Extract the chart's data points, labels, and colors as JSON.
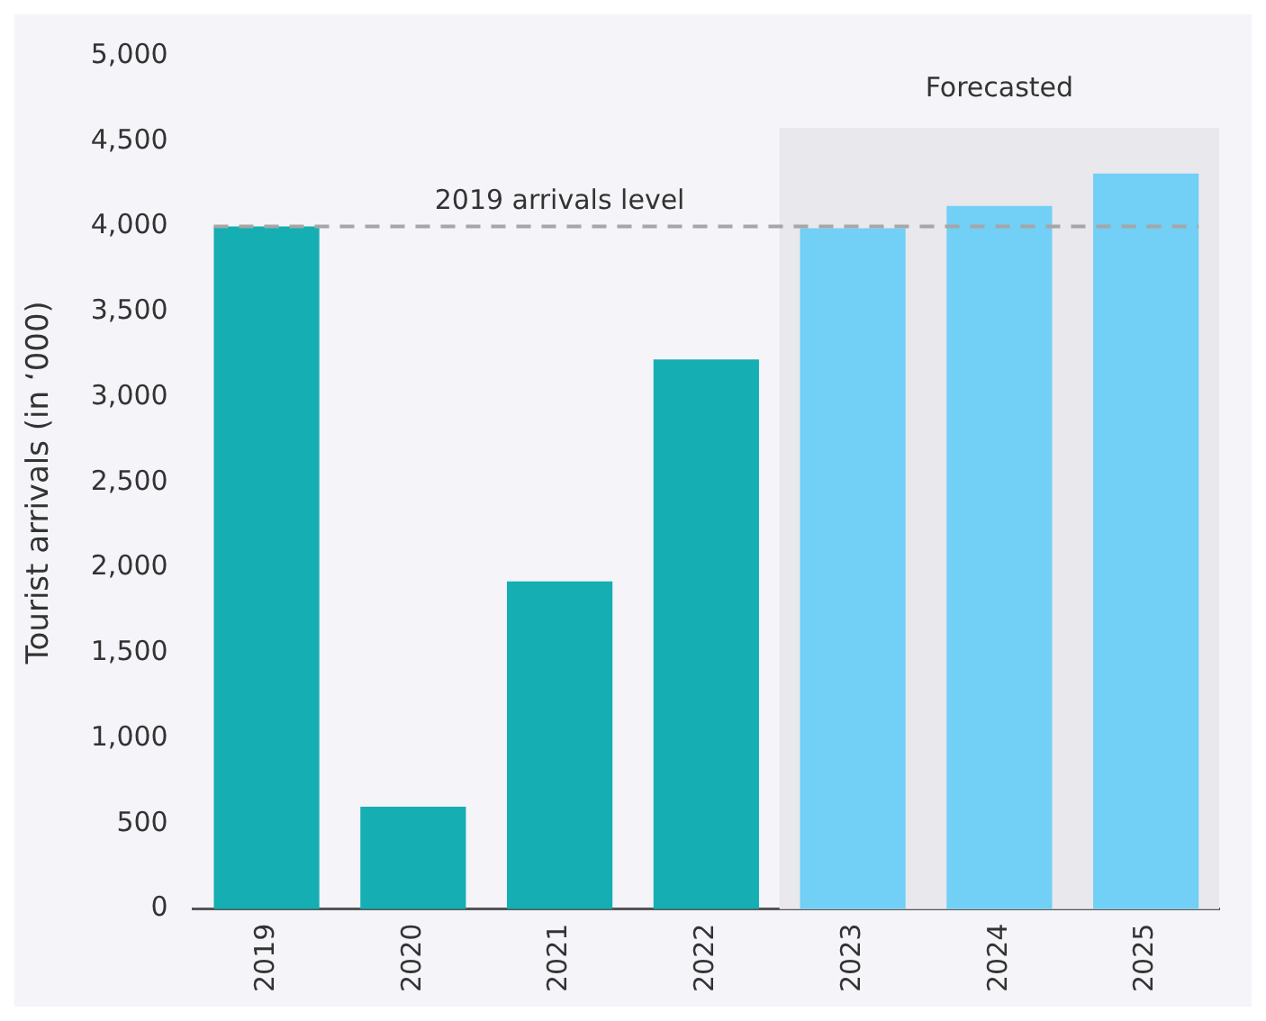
{
  "chart_data": {
    "type": "bar",
    "ylabel": "Tourist arrivals (in ‘000)",
    "categories": [
      "2019",
      "2020",
      "2021",
      "2022",
      "2023",
      "2024",
      "2025"
    ],
    "values": [
      4000,
      600,
      1920,
      3220,
      3990,
      4120,
      4310
    ],
    "colors": [
      "#14aeb3",
      "#14aeb3",
      "#14aeb3",
      "#14aeb3",
      "#72cff5",
      "#72cff5",
      "#72cff5"
    ],
    "ylim": [
      0,
      5000
    ],
    "yticks": [
      0,
      500,
      {
        "value": 1000,
        "label": "1,000"
      },
      {
        "value": 1500,
        "label": "1,500"
      },
      {
        "value": 2000,
        "label": "2,000"
      },
      {
        "value": 2500,
        "label": "2,500"
      },
      {
        "value": 3000,
        "label": "3,000"
      },
      {
        "value": 3500,
        "label": "3,500"
      },
      {
        "value": 4000,
        "label": "4,000"
      },
      {
        "value": 4500,
        "label": "4,500"
      },
      {
        "value": 5000,
        "label": "5,000"
      }
    ],
    "ref_lines": [
      {
        "axis": "y",
        "value": 4000,
        "label": "2019 arrivals level",
        "color": "#a6a6a6",
        "line_style": "dashed"
      }
    ],
    "bands": [
      {
        "axis": "x",
        "from": "2023",
        "to": "2025",
        "label": "Forecasted",
        "color": "#e8e8ed"
      }
    ],
    "grid": false,
    "legend": false
  }
}
